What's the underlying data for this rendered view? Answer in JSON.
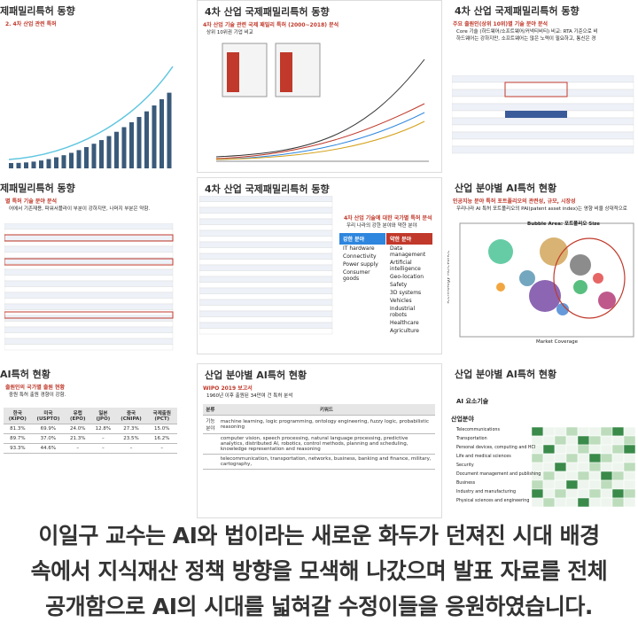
{
  "slides": [
    {
      "title": "제패밀리특허 동향",
      "subtitle": "2. 4차 산업 관련 특허"
    },
    {
      "title": "4차 산업 국제패밀리특허 동향",
      "subtitle": "4차 산업 기술 관련 국제 패밀리 특허 (2000~2018) 분석",
      "lines": [
        "상위 10위권 기업 비교"
      ]
    },
    {
      "title": "4차 산업 국제패밀리특허 동향",
      "subtitle": "주요 출원인(상위 10위)별 기술 분야 분석",
      "lines": [
        "Core 기술 (하드웨어/소프트웨어/커넥티비티) 비교: RTA 기준으로 비",
        "하드웨어는 강하지만, 소프트웨어는 많은 노력이 필요하고, 통신은 경"
      ]
    },
    {
      "title": "제패밀리특허 동향",
      "subtitle": "별 특허 기술 분야 분석",
      "lines": [
        "어에서 기존재용, 파워서플라이 부분이 강하지만, 나머지 부분은 약함."
      ]
    },
    {
      "title": "4차 산업 국제패밀리특허 동향",
      "subtitle": "4차 산업 기술에 대한 국가별 특허 분석",
      "lines": [
        "우리 나라의 강한 분야와 약한 분야"
      ],
      "strong": {
        "label": "강한 분야",
        "items": [
          "IT hardware",
          "Connectivity",
          "Power supply",
          "Consumer goods"
        ]
      },
      "weak": {
        "label": "약한 분야",
        "items": [
          "Data management",
          "Artificial intelligence",
          "Geo-location",
          "Safety",
          "3D systems",
          "Vehicles",
          "Industrial robots",
          "Healthcare",
          "Agriculture"
        ]
      }
    },
    {
      "title": "산업 분야별 AI특허 현황",
      "subtitle": "인공지능 분야 특허 포트폴리오의 관련성, 규모, 시장성",
      "lines": [
        "우리나라 AI 특허 포트폴리오의 PAI(patent asset index)는 영향 비율 상대적으로"
      ],
      "chart_title": "Bubble Area: 포트폴리오 Size",
      "y_label": "Technology Relevance",
      "x_label": "Market Coverage"
    },
    {
      "title": "AI특허 현황",
      "subtitle": "출원인의 국가별 출원 현황",
      "lines": [
        "중원 특허 출원 경향이 강함."
      ],
      "table": [
        [
          "한국(KIPO)",
          "미국(USPTO)",
          "유럽(EPO)",
          "일본(JPO)",
          "중국(CNIPA)",
          "국제출원(PCT)"
        ],
        [
          "81.3%",
          "69.9%",
          "24.0%",
          "12.8%",
          "27.3%",
          "15.0%"
        ],
        [
          "89.7%",
          "37.0%",
          "21.3%",
          "–",
          "23.5%",
          "16.2%"
        ],
        [
          "93.3%",
          "44.6%",
          "–",
          "–",
          "–",
          "–"
        ]
      ]
    },
    {
      "title": "산업 분야별 AI특허 현황",
      "subtitle": "WIPO 2019 보고서",
      "lines": [
        "1960년 이후 출원된 34만여 건 특허 분석"
      ],
      "table": [
        [
          "분류",
          "키워드"
        ],
        [
          "기능분야",
          "machine learning, logic programming, ontology engineering, fuzzy logic, probabilistic reasoning"
        ],
        [
          "",
          "computer vision, speech processing, natural language processing, predictive analytics, distributed AI, robotics, control methods, planning and scheduling, knowledge representation and reasoning"
        ],
        [
          "",
          "telecommunication, transportation, networks, business, banking and finance, military, cartography,"
        ]
      ]
    },
    {
      "title": "산업 분야별 AI특허 현황",
      "lines": [
        "AI 요소기술",
        "산업분야"
      ],
      "rows": [
        "Telecommunications",
        "Transportation",
        "Personal devices, computing and HCI",
        "Life and medical sciences",
        "Security",
        "Document management and publishing",
        "Business",
        "Industry and manufacturing",
        "Physical sciences and engineering"
      ]
    }
  ],
  "caption": [
    "이일구 교수는 AI와 법이라는 새로운 화두가 던져진 시대 배경",
    "속에서 지식재산 정책 방향을 모색해 나갔으며 발표 자료를 전체",
    "공개함으로 AI의 시대를 넓혀갈 수정이들을 응원하였습니다."
  ]
}
